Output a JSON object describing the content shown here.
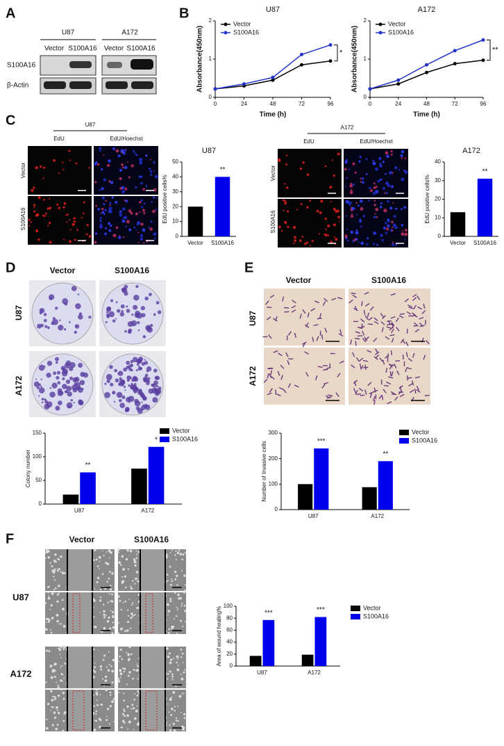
{
  "panels": {
    "A": {
      "letter": "A",
      "groups": [
        "U87",
        "A172"
      ],
      "lanes": [
        "Vector",
        "S100A16",
        "Vector",
        "S100A16"
      ],
      "rows": [
        "S100A16",
        "β-Actin"
      ]
    },
    "B": {
      "letter": "B"
    },
    "C": {
      "letter": "C",
      "images": [
        {
          "group": "U87",
          "columns": [
            "EdU",
            "EdU/Hoechst"
          ],
          "rows": [
            "Vector",
            "S100A16"
          ]
        },
        {
          "group": "A172",
          "columns": [
            "EdU",
            "EdU/Hoechst"
          ],
          "rows": [
            "Vector",
            "S100A16"
          ]
        }
      ]
    },
    "D": {
      "letter": "D",
      "columns": [
        "Vector",
        "S100A16"
      ],
      "rows": [
        "U87",
        "A172"
      ]
    },
    "E": {
      "letter": "E",
      "columns": [
        "Vector",
        "S100A16"
      ],
      "rows": [
        "U87",
        "A172"
      ]
    },
    "F": {
      "letter": "F",
      "columns": [
        "Vector",
        "S100A16"
      ],
      "rows": [
        "U87",
        "A172"
      ]
    }
  },
  "chart_data": [
    {
      "type": "line",
      "title": "U87",
      "x_label": "Time (h)",
      "y_label": "Absorbance(450nm)",
      "x": [
        0,
        24,
        48,
        72,
        96
      ],
      "xlim": [
        0,
        96
      ],
      "xticks": [
        0,
        24,
        48,
        72,
        96
      ],
      "ylim": [
        0,
        2
      ],
      "yticks": [
        0,
        1,
        2
      ],
      "series": [
        {
          "name": "Vector",
          "color": "#000000",
          "values": [
            0.22,
            0.3,
            0.45,
            0.85,
            0.95
          ]
        },
        {
          "name": "S100A16",
          "color": "#2233cc",
          "values": [
            0.22,
            0.35,
            0.52,
            1.12,
            1.37
          ]
        }
      ],
      "annotation": "*"
    },
    {
      "type": "line",
      "title": "A172",
      "x_label": "Time (h)",
      "y_label": "Absorbance(450nm)",
      "x": [
        0,
        24,
        48,
        72,
        96
      ],
      "xlim": [
        0,
        96
      ],
      "xticks": [
        0,
        24,
        48,
        72,
        96
      ],
      "ylim": [
        0,
        2
      ],
      "yticks": [
        0,
        1,
        2
      ],
      "series": [
        {
          "name": "Vector",
          "color": "#000000",
          "values": [
            0.22,
            0.35,
            0.65,
            0.88,
            0.97
          ]
        },
        {
          "name": "S100A16",
          "color": "#2233cc",
          "values": [
            0.22,
            0.45,
            0.85,
            1.22,
            1.5
          ]
        }
      ],
      "annotation": "**"
    },
    {
      "type": "bar",
      "title": "U87",
      "y_label": "EdU positive cells%",
      "categories": [
        "Vector",
        "S100A16"
      ],
      "values": [
        20,
        40
      ],
      "colors": [
        "#000000",
        "#0000ee"
      ],
      "ylim": [
        0,
        50
      ],
      "yticks": [
        0,
        10,
        20,
        30,
        40,
        50
      ],
      "annotations": [
        null,
        "**"
      ]
    },
    {
      "type": "bar",
      "title": "A172",
      "y_label": "EdU positive cells%",
      "categories": [
        "Vector",
        "S100A16"
      ],
      "values": [
        13,
        31
      ],
      "colors": [
        "#000000",
        "#0000ee"
      ],
      "ylim": [
        0,
        40
      ],
      "yticks": [
        0,
        10,
        20,
        30,
        40
      ],
      "annotations": [
        null,
        "**"
      ]
    },
    {
      "type": "bar",
      "y_label": "Colony number",
      "categories": [
        "U87",
        "A172"
      ],
      "series": [
        {
          "name": "Vector",
          "color": "#000000",
          "values": [
            20,
            75
          ]
        },
        {
          "name": "S100A16",
          "color": "#0000ee",
          "values": [
            67,
            121
          ]
        }
      ],
      "ylim": [
        0,
        150
      ],
      "yticks": [
        0,
        50,
        100,
        150
      ],
      "annotations": [
        "**",
        "*"
      ]
    },
    {
      "type": "bar",
      "y_label": "Number of Invasive cells",
      "categories": [
        "U87",
        "A172"
      ],
      "series": [
        {
          "name": "Vector",
          "color": "#000000",
          "values": [
            100,
            88
          ]
        },
        {
          "name": "S100A16",
          "color": "#0000ee",
          "values": [
            240,
            190
          ]
        }
      ],
      "ylim": [
        0,
        300
      ],
      "yticks": [
        0,
        100,
        200,
        300
      ],
      "annotations": [
        "***",
        "**"
      ]
    },
    {
      "type": "bar",
      "y_label": "Area of wound healing%",
      "categories": [
        "U87",
        "A172"
      ],
      "series": [
        {
          "name": "Vector",
          "color": "#000000",
          "values": [
            17,
            19
          ]
        },
        {
          "name": "S100A16",
          "color": "#0000ee",
          "values": [
            77,
            82
          ]
        }
      ],
      "ylim": [
        0,
        100
      ],
      "yticks": [
        0,
        20,
        40,
        60,
        80,
        100
      ],
      "annotations": [
        "***",
        "***"
      ]
    }
  ]
}
